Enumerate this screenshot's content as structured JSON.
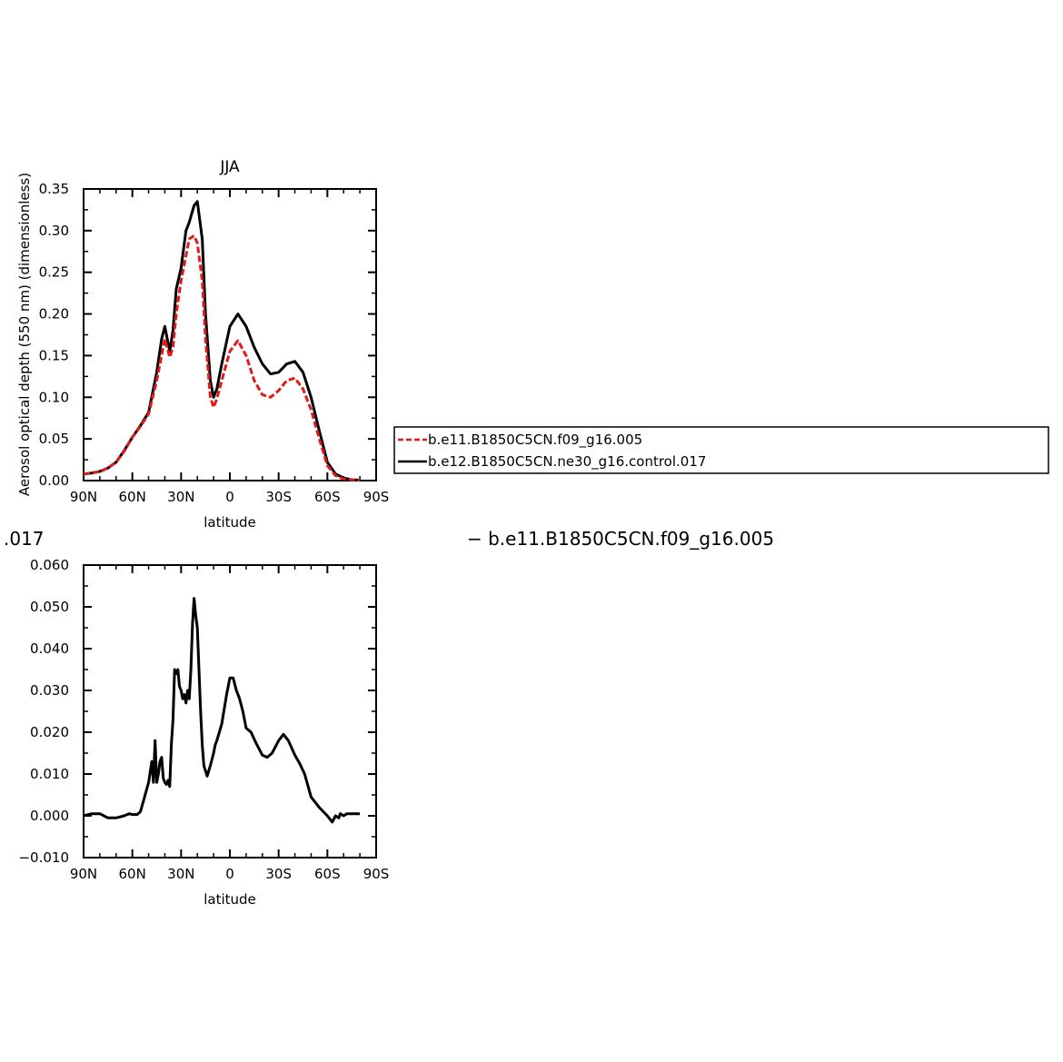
{
  "chart_data": [
    {
      "type": "line",
      "title": "JJA",
      "xlabel": "latitude",
      "ylabel": "Aerosol optical depth (550 nm) (dimensionless)",
      "x_tick_labels": [
        "90N",
        "60N",
        "30N",
        "0",
        "30S",
        "60S",
        "90S"
      ],
      "x_tick_values": [
        90,
        60,
        30,
        0,
        -30,
        -60,
        -90
      ],
      "y_tick_labels": [
        "0.00",
        "0.05",
        "0.10",
        "0.15",
        "0.20",
        "0.25",
        "0.30",
        "0.35"
      ],
      "ylim": [
        0,
        0.35
      ],
      "xlim": [
        90,
        -90
      ],
      "legend": {
        "placement": "right",
        "entries": [
          {
            "name": "b.e11.B1850C5CN.f09_g16.005",
            "color": "#e31a1c",
            "style": "dashed"
          },
          {
            "name": "b.e12.B1850C5CN.ne30_g16.control.017",
            "color": "#000000",
            "style": "solid"
          }
        ]
      },
      "series": [
        {
          "name": "b.e11.B1850C5CN.f09_g16.005",
          "color": "#e31a1c",
          "x": [
            90,
            85,
            80,
            75,
            70,
            65,
            60,
            55,
            50,
            45,
            42,
            40,
            37,
            35,
            33,
            30,
            27,
            25,
            22,
            20,
            17,
            15,
            12,
            10,
            8,
            5,
            0,
            -5,
            -10,
            -15,
            -20,
            -25,
            -30,
            -35,
            -40,
            -45,
            -50,
            -55,
            -60,
            -65,
            -70,
            -75,
            -80
          ],
          "y": [
            0.008,
            0.009,
            0.011,
            0.015,
            0.022,
            0.035,
            0.052,
            0.065,
            0.08,
            0.12,
            0.15,
            0.17,
            0.148,
            0.16,
            0.2,
            0.24,
            0.27,
            0.29,
            0.294,
            0.285,
            0.24,
            0.17,
            0.1,
            0.088,
            0.098,
            0.12,
            0.155,
            0.168,
            0.15,
            0.12,
            0.103,
            0.1,
            0.108,
            0.12,
            0.123,
            0.11,
            0.085,
            0.05,
            0.018,
            0.006,
            0.002,
            0.001,
            0.0005
          ]
        },
        {
          "name": "b.e12.B1850C5CN.ne30_g16.control.017",
          "color": "#000000",
          "x": [
            90,
            85,
            80,
            75,
            70,
            65,
            60,
            55,
            50,
            45,
            42,
            40,
            37,
            35,
            33,
            30,
            27,
            25,
            22,
            20,
            17,
            15,
            12,
            10,
            8,
            5,
            0,
            -5,
            -10,
            -15,
            -20,
            -25,
            -30,
            -35,
            -40,
            -45,
            -50,
            -55,
            -60,
            -65,
            -70,
            -75,
            -80
          ],
          "y": [
            0.008,
            0.009,
            0.011,
            0.015,
            0.022,
            0.036,
            0.052,
            0.066,
            0.082,
            0.13,
            0.17,
            0.185,
            0.155,
            0.18,
            0.23,
            0.255,
            0.3,
            0.31,
            0.33,
            0.335,
            0.29,
            0.2,
            0.12,
            0.1,
            0.11,
            0.14,
            0.185,
            0.2,
            0.185,
            0.16,
            0.14,
            0.128,
            0.13,
            0.14,
            0.143,
            0.13,
            0.1,
            0.06,
            0.022,
            0.008,
            0.003,
            0.001,
            0.0005
          ]
        }
      ]
    },
    {
      "type": "line",
      "xlabel": "latitude",
      "x_tick_labels": [
        "90N",
        "60N",
        "30N",
        "0",
        "30S",
        "60S",
        "90S"
      ],
      "x_tick_values": [
        90,
        60,
        30,
        0,
        -30,
        -60,
        -90
      ],
      "y_tick_labels": [
        "−0.010",
        "0.000",
        "0.010",
        "0.020",
        "0.030",
        "0.040",
        "0.050",
        "0.060"
      ],
      "ylim": [
        -0.01,
        0.06
      ],
      "xlim": [
        90,
        -90
      ],
      "series": [
        {
          "color": "#000000",
          "x": [
            90,
            85,
            80,
            75,
            70,
            65,
            62,
            60,
            57,
            55,
            50,
            48,
            47,
            46,
            45,
            44,
            43,
            42,
            41,
            40,
            39,
            38,
            37,
            36,
            35,
            34,
            33,
            32,
            31,
            30,
            29,
            28,
            27,
            26,
            25,
            24,
            23,
            22,
            21,
            20,
            19,
            18,
            17,
            16,
            14,
            12,
            10,
            9,
            8,
            5,
            2,
            0,
            -2,
            -4,
            -6,
            -8,
            -10,
            -13,
            -16,
            -18,
            -20,
            -23,
            -26,
            -30,
            -33,
            -36,
            -40,
            -43,
            -46,
            -50,
            -55,
            -60,
            -63,
            -65,
            -67,
            -68,
            -70,
            -72,
            -75,
            -80
          ],
          "y": [
            0.0,
            0.0005,
            0.0005,
            -0.0005,
            -0.0005,
            0.0,
            0.0005,
            0.0003,
            0.0003,
            0.001,
            0.008,
            0.013,
            0.008,
            0.018,
            0.008,
            0.01,
            0.013,
            0.014,
            0.009,
            0.008,
            0.0075,
            0.0085,
            0.007,
            0.017,
            0.023,
            0.035,
            0.034,
            0.035,
            0.031,
            0.03,
            0.028,
            0.029,
            0.027,
            0.03,
            0.028,
            0.035,
            0.046,
            0.052,
            0.048,
            0.045,
            0.035,
            0.025,
            0.017,
            0.012,
            0.0095,
            0.012,
            0.015,
            0.017,
            0.018,
            0.022,
            0.029,
            0.033,
            0.033,
            0.03,
            0.028,
            0.025,
            0.021,
            0.02,
            0.0175,
            0.016,
            0.0145,
            0.014,
            0.015,
            0.018,
            0.0195,
            0.018,
            0.0145,
            0.0125,
            0.01,
            0.0045,
            0.002,
            0.0,
            -0.0015,
            0.0,
            -0.0005,
            0.0005,
            0.0,
            0.0005,
            0.0005,
            0.0005
          ]
        }
      ]
    }
  ],
  "overlay_fragments": {
    "clipped_left_text": " .017",
    "clipped_right_text": "− b.e11.B1850C5CN.f09_g16.005"
  }
}
